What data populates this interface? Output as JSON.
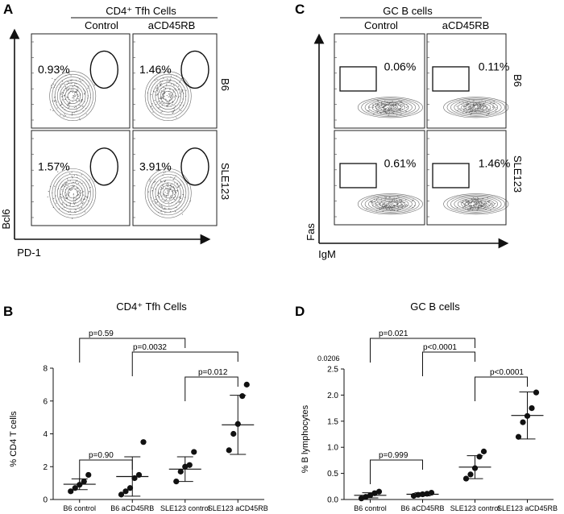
{
  "panels": {
    "A": {
      "letter": "A",
      "header": "CD4⁺ Tfh Cells",
      "col_labels": [
        "Control",
        "aCD45RB"
      ],
      "row_labels": [
        "B6",
        "SLE123"
      ],
      "percents": [
        [
          "0.93%",
          "1.46%"
        ],
        [
          "1.57%",
          "3.91%"
        ]
      ],
      "y_axis_label": "Bcl6",
      "x_axis_label": "PD-1"
    },
    "C": {
      "letter": "C",
      "header": "GC B cells",
      "col_labels": [
        "Control",
        "aCD45RB"
      ],
      "row_labels": [
        "B6",
        "SLE123"
      ],
      "percents": [
        [
          "0.06%",
          "0.11%"
        ],
        [
          "0.61%",
          "1.46%"
        ]
      ],
      "y_axis_label": "Fas",
      "x_axis_label": "IgM"
    },
    "B": {
      "letter": "B"
    },
    "D": {
      "letter": "D",
      "stray_label": "0.0206"
    }
  },
  "chart_data": [
    {
      "type": "scatter",
      "title": "CD4⁺ Tfh Cells",
      "ylabel": "% CD4 T cells",
      "categories": [
        "B6 control",
        "B6 aCD45RB",
        "SLE123 control",
        "SLE123 aCD45RB"
      ],
      "ylim": [
        0,
        8
      ],
      "yticks": [
        0,
        2,
        4,
        6,
        8
      ],
      "points": [
        [
          0.5,
          0.7,
          0.9,
          1.1,
          1.5
        ],
        [
          0.3,
          0.5,
          0.7,
          1.3,
          1.5,
          3.5
        ],
        [
          1.1,
          1.7,
          2.0,
          2.1,
          2.9
        ],
        [
          3.0,
          4.0,
          4.6,
          6.3,
          7.0
        ]
      ],
      "means": [
        0.93,
        1.4,
        1.85,
        4.55
      ],
      "sd": [
        0.33,
        1.2,
        0.75,
        1.8
      ],
      "comparisons": [
        {
          "label": "p=0.59",
          "from": 0,
          "to": 2
        },
        {
          "label": "p=0.0032",
          "from": 1,
          "to": 3
        },
        {
          "label": "p=0.012",
          "from": 2,
          "to": 3
        },
        {
          "label": "p=0.90",
          "from": 0,
          "to": 1
        }
      ]
    },
    {
      "type": "scatter",
      "title": "GC B cells",
      "ylabel": "% B lymphocytes",
      "categories": [
        "B6 control",
        "B6 aCD45RB",
        "SLE123 control",
        "SLE123 aCD45RB"
      ],
      "ylim": [
        0,
        2.5
      ],
      "yticks": [
        0.0,
        0.5,
        1.0,
        1.5,
        2.0,
        2.5
      ],
      "points": [
        [
          0.02,
          0.05,
          0.08,
          0.12,
          0.15
        ],
        [
          0.07,
          0.09,
          0.1,
          0.11,
          0.13
        ],
        [
          0.4,
          0.48,
          0.6,
          0.82,
          0.92
        ],
        [
          1.2,
          1.48,
          1.6,
          1.75,
          2.05
        ]
      ],
      "means": [
        0.08,
        0.1,
        0.62,
        1.61
      ],
      "sd": [
        0.05,
        0.03,
        0.22,
        0.45
      ],
      "comparisons": [
        {
          "label": "p=0.021",
          "from": 0,
          "to": 2
        },
        {
          "label": "p<0.0001",
          "from": 1,
          "to": 2
        },
        {
          "label": "p<0.0001",
          "from": 2,
          "to": 3
        },
        {
          "label": "p=0.999",
          "from": 0,
          "to": 1
        }
      ]
    }
  ]
}
